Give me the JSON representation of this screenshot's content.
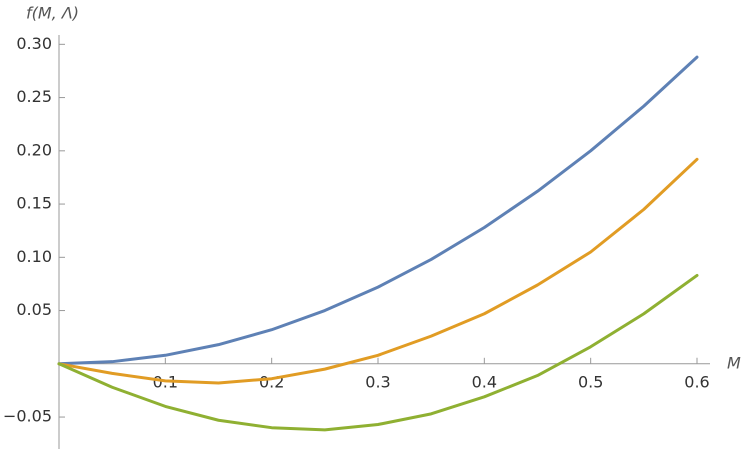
{
  "chart_data": {
    "type": "line",
    "x_label": "M",
    "y_label": "f(M, Λ)",
    "x": [
      0,
      0.05,
      0.1,
      0.15,
      0.2,
      0.25,
      0.3,
      0.35,
      0.4,
      0.45,
      0.5,
      0.55,
      0.6
    ],
    "series": [
      {
        "color": "#5e81b5",
        "values": [
          0,
          0.002,
          0.008,
          0.018,
          0.032,
          0.05,
          0.072,
          0.098,
          0.128,
          0.162,
          0.2,
          0.242,
          0.288
        ]
      },
      {
        "color": "#e19c24",
        "values": [
          0,
          -0.009,
          -0.016,
          -0.018,
          -0.014,
          -0.005,
          0.008,
          0.026,
          0.047,
          0.074,
          0.105,
          0.145,
          0.192
        ]
      },
      {
        "color": "#8fb032",
        "values": [
          0,
          -0.022,
          -0.04,
          -0.053,
          -0.06,
          -0.062,
          -0.057,
          -0.047,
          -0.031,
          -0.011,
          0.016,
          0.047,
          0.083
        ]
      }
    ],
    "xlim": [
      0,
      0.6
    ],
    "ylim": [
      -0.08,
      0.305
    ],
    "xticks": [
      0.1,
      0.2,
      0.3,
      0.4,
      0.5,
      0.6
    ],
    "yticks": [
      {
        "value": -0.05,
        "label": "−0.05"
      },
      0.05,
      {
        "value": 0.1,
        "label": "0.10"
      },
      0.15,
      {
        "value": 0.2,
        "label": "0.20"
      },
      0.25,
      {
        "value": 0.3,
        "label": "0.30"
      }
    ],
    "grid": false
  }
}
